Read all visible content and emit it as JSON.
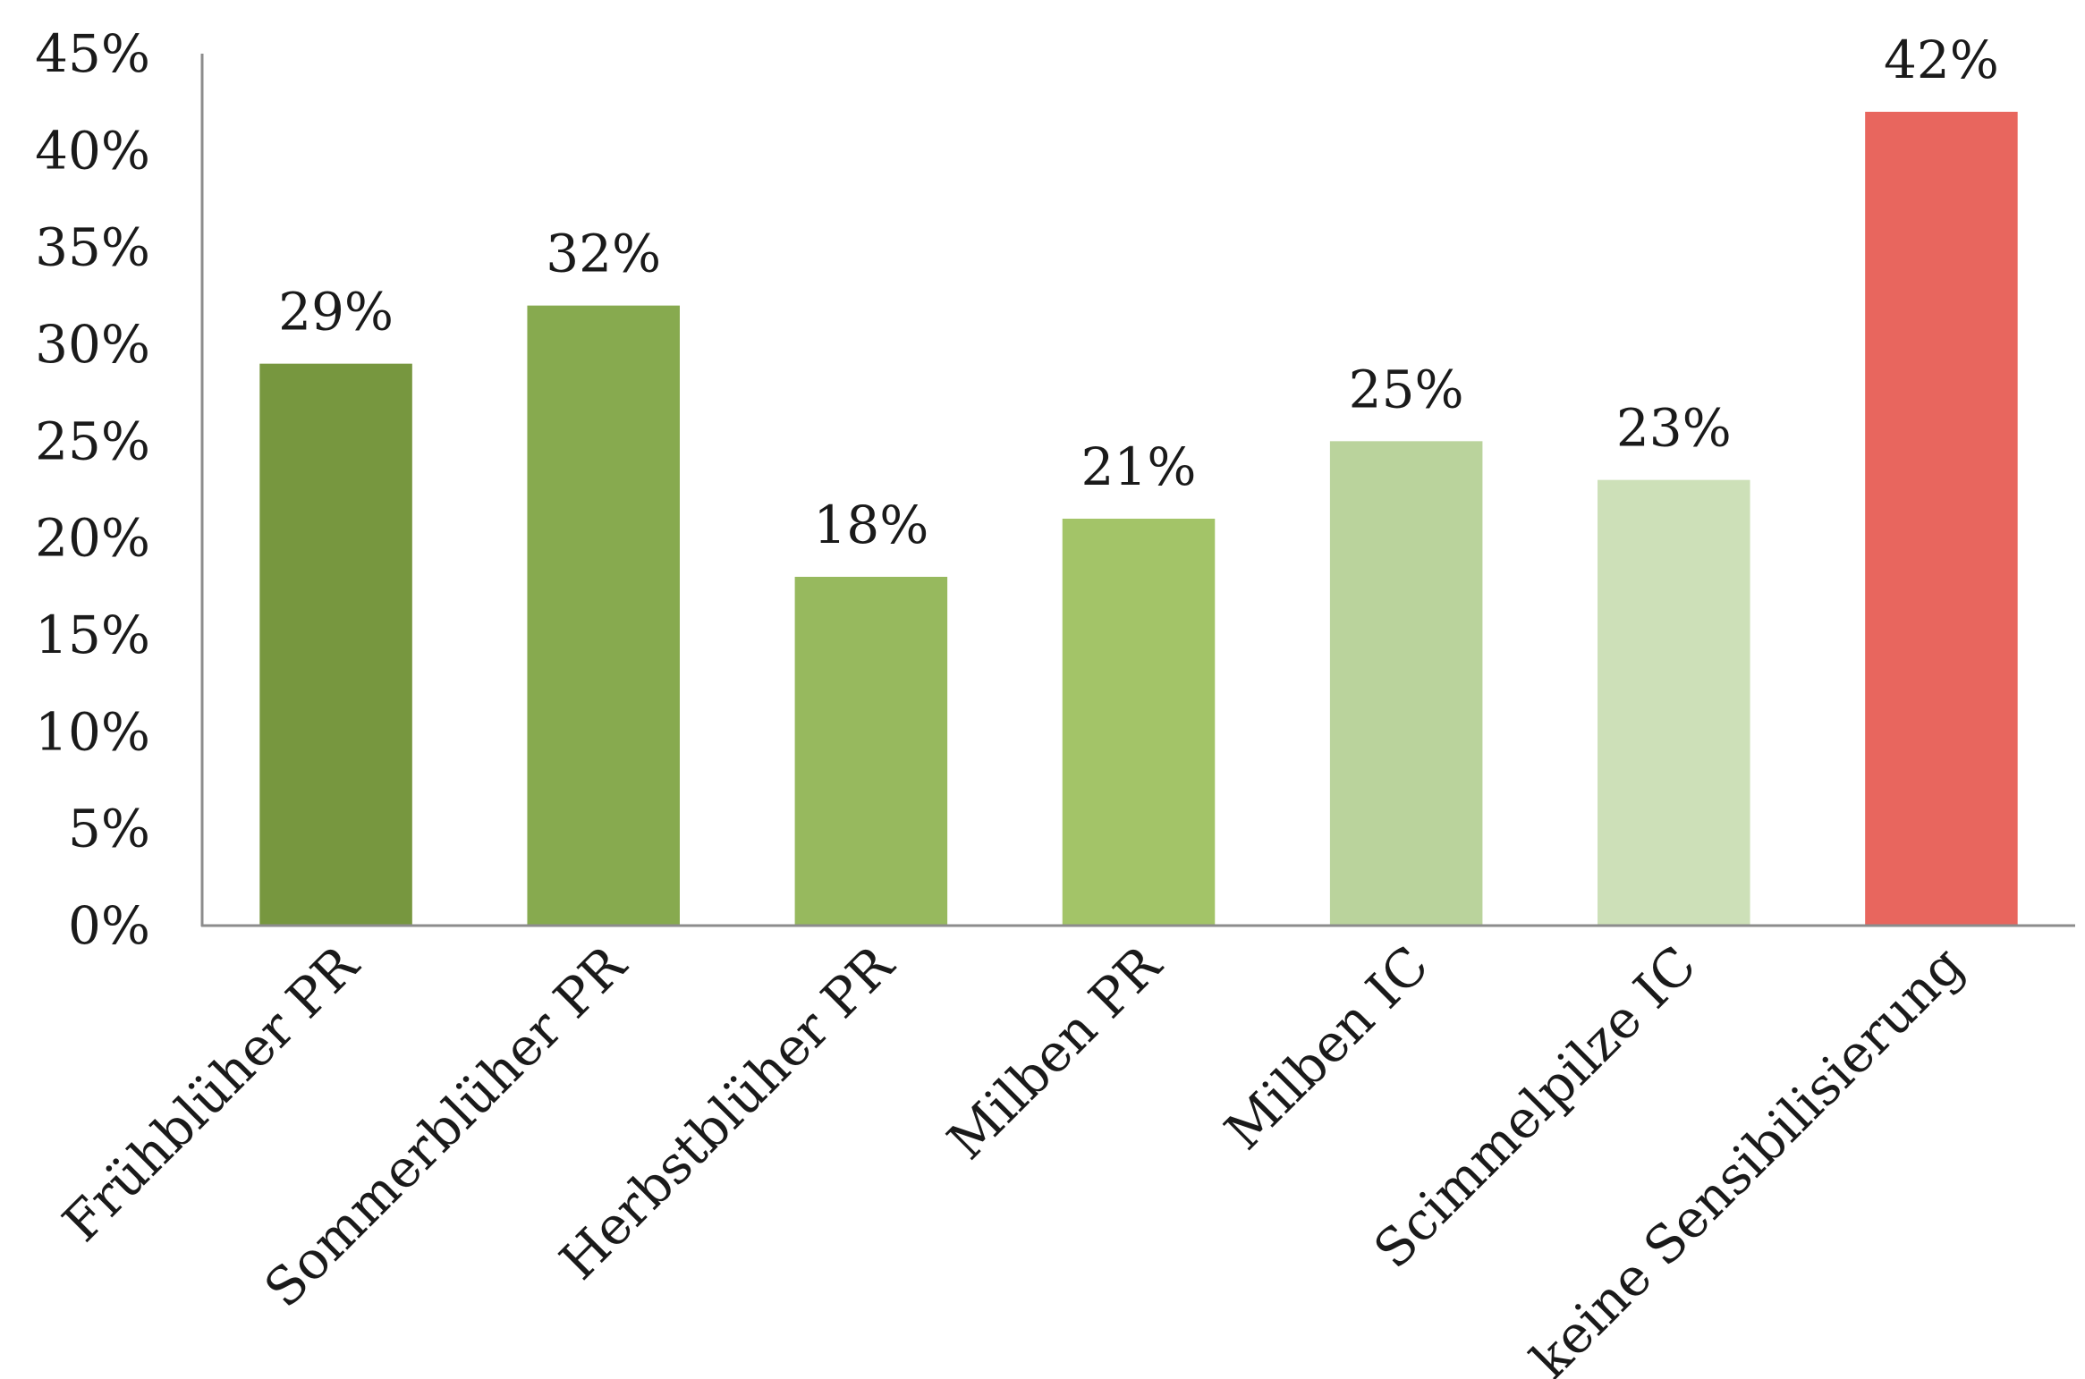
{
  "chart_data": {
    "type": "bar",
    "categories": [
      "Frühblüher PR",
      "Sommerblüher PR",
      "Herbstblüher PR",
      "Milben PR",
      "Milben IC",
      "Scimmelpilze IC",
      "keine Sensibilisierung"
    ],
    "values": [
      29,
      32,
      18,
      21,
      25,
      23,
      42
    ],
    "data_labels": [
      "29%",
      "32%",
      "18%",
      "21%",
      "25%",
      "23%",
      "42%"
    ],
    "colors": [
      "#77973f",
      "#87aa4f",
      "#97b95e",
      "#a3c468",
      "#bad39c",
      "#cde0b8",
      "#e8665e"
    ],
    "title": "",
    "xlabel": "",
    "ylabel": "",
    "ylim": [
      0,
      45
    ],
    "yticks": [
      0,
      5,
      10,
      15,
      20,
      25,
      30,
      35,
      40,
      45
    ],
    "ytick_labels": [
      "0%",
      "5%",
      "10%",
      "15%",
      "20%",
      "25%",
      "30%",
      "35%",
      "40%",
      "45%"
    ],
    "grid": false,
    "legend": "none",
    "axis_color": "#8c8c8c"
  }
}
